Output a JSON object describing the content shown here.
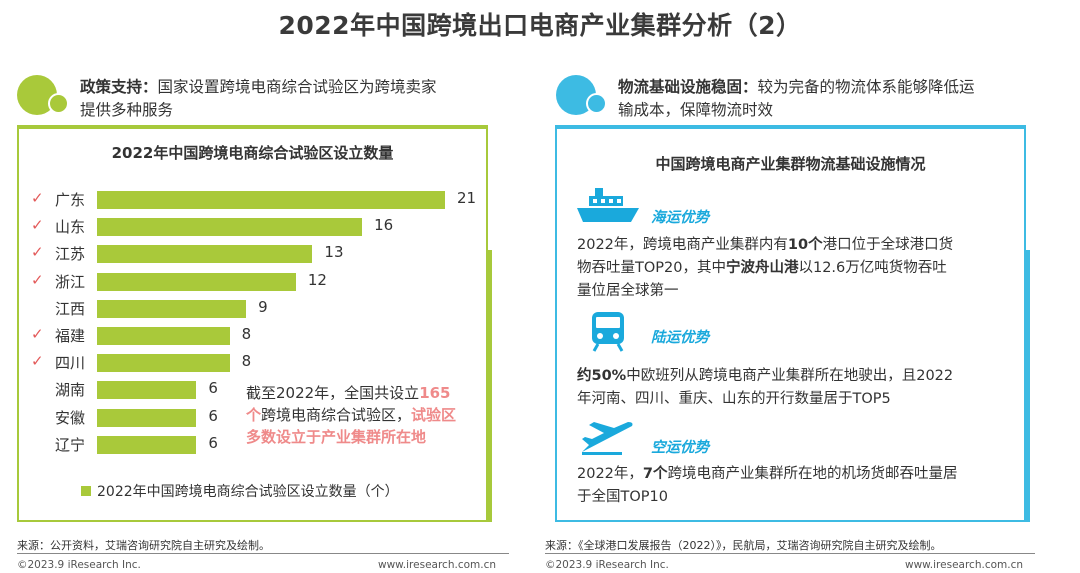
{
  "title": "2022年中国跨境出口电商产业集群分析（2）",
  "left": {
    "header_bold": "政策支持：",
    "header_line1": "国家设置跨境电商综合试验区为跨境卖家",
    "header_line2": "提供多种服务",
    "accent": "#a9c93a",
    "annotation": {
      "p1": "截至2022年，全国共设立",
      "p2": "165",
      "p3": "个",
      "p4": "跨境电商综合试验区，",
      "p5": "试验区",
      "p6": "多数设立于产业集群所在地"
    },
    "source": "来源：公开资料，艾瑞咨询研究院自主研究及绘制。",
    "copyright": "©2023.9 iResearch Inc.",
    "website": "www.iresearch.com.cn"
  },
  "chart_data": {
    "type": "bar",
    "orientation": "horizontal",
    "title": "2022年中国跨境电商综合试验区设立数量",
    "categories": [
      "广东",
      "山东",
      "江苏",
      "浙江",
      "江西",
      "福建",
      "四川",
      "湖南",
      "安徽",
      "辽宁"
    ],
    "values": [
      21,
      16,
      13,
      12,
      9,
      8,
      8,
      6,
      6,
      6
    ],
    "checked": [
      true,
      true,
      true,
      true,
      false,
      true,
      true,
      false,
      false,
      false
    ],
    "check_mark": "✓",
    "series": [
      {
        "name": "2022年中国跨境电商综合试验区设立数量（个）",
        "values": [
          21,
          16,
          13,
          12,
          9,
          8,
          8,
          6,
          6,
          6
        ]
      }
    ],
    "xlim": [
      0,
      21
    ],
    "legend_position": "bottom",
    "grid": false
  },
  "right": {
    "header_bold": "物流基础设施稳固：",
    "header_line1": "较为完备的物流体系能够降低运",
    "header_line2": "输成本，保障物流时效",
    "accent": "#3dbbe3",
    "panel_title": "中国跨境电商产业集群物流基础设施情况",
    "sea": {
      "title": "海运优势",
      "l1a": "2022年，跨境电商产业集群内有",
      "l1b": "10个",
      "l1c": "港口位于全球港口货",
      "l2a": "物吞吐量TOP20，其中",
      "l2b": "宁波舟山港",
      "l2c": "以12.6万亿吨货物吞吐",
      "l3": "量位居全球第一"
    },
    "land": {
      "title": "陆运优势",
      "l1a": "约50%",
      "l1b": "中欧班列从跨境电商产业集群所在地驶出，且2022",
      "l2": "年河南、四川、重庆、山东的开行数量居于TOP5"
    },
    "air": {
      "title": "空运优势",
      "l1a": "2022年，",
      "l1b": "7个",
      "l1c": "跨境电商产业集群所在地的机场货邮吞吐量居",
      "l2": "于全国TOP10"
    },
    "source": "来源：《全球港口发展报告（2022）》，民航局，艾瑞咨询研究院自主研究及绘制。",
    "copyright": "©2023.9 iResearch Inc.",
    "website": "www.iresearch.com.cn"
  }
}
